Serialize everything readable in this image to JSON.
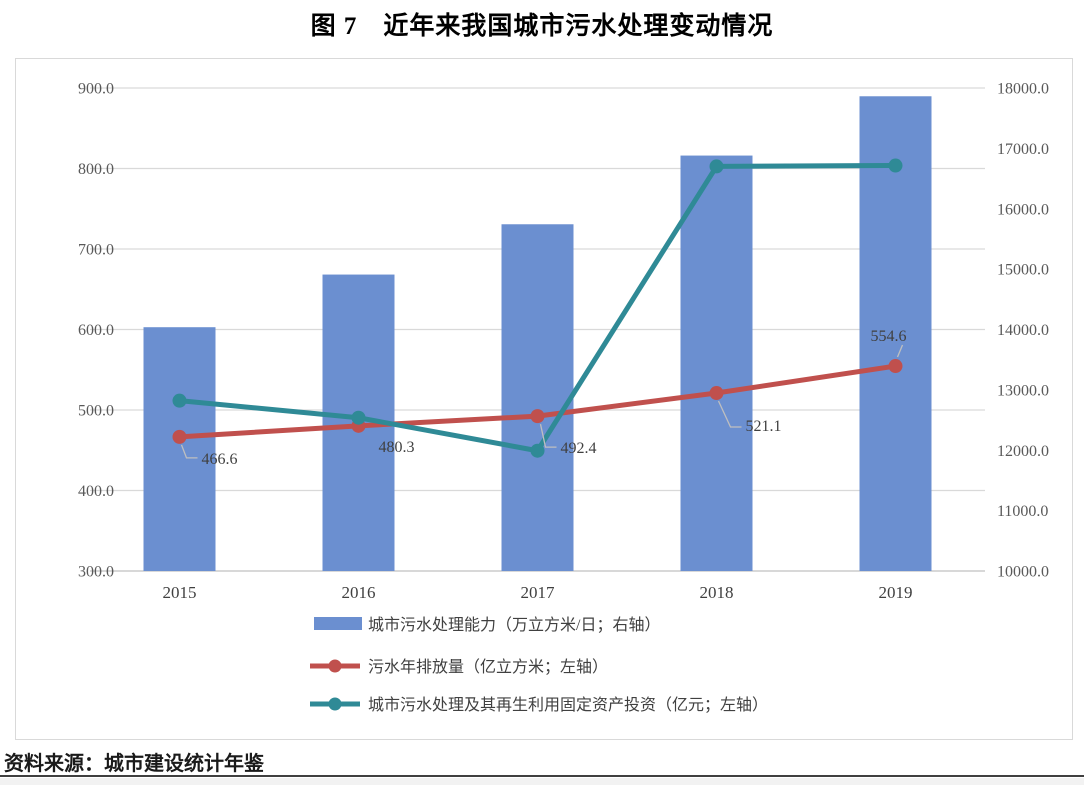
{
  "title": "图 7　近年来我国城市污水处理变动情况",
  "source": "资料来源：城市建设统计年鉴",
  "colors": {
    "bar_blue": "#6B8FD0",
    "line_red": "#C0504D",
    "line_teal": "#2F8A96",
    "grid": "#D9D9D9",
    "axis_line": "#CCCCCC",
    "axis_text": "#595959",
    "label_text": "#404040",
    "leader": "#BFBFBF",
    "frame": "#D9D9D9"
  },
  "chart_data": {
    "type": "bar+line combo",
    "categories": [
      "2015",
      "2016",
      "2017",
      "2018",
      "2019"
    ],
    "series": [
      {
        "name": "城市污水处理能力（万立方米/日；右轴）",
        "type": "bar",
        "axis": "right",
        "color": "#6B8FD0",
        "values": [
          14038,
          14910,
          15743,
          16881,
          17863
        ]
      },
      {
        "name": "污水年排放量（亿立方米；左轴）",
        "type": "line",
        "axis": "left",
        "color": "#C0504D",
        "values": [
          466.6,
          480.3,
          492.4,
          521.1,
          554.6
        ],
        "point_labels": [
          "466.6",
          "480.3",
          "492.4",
          "521.1",
          "554.6"
        ]
      },
      {
        "name": "城市污水处理及其再生利用固定资产投资（亿元；左轴）",
        "type": "line",
        "axis": "left",
        "color": "#2F8A96",
        "values": [
          511.6,
          490.4,
          449.4,
          802.6,
          803.7
        ]
      }
    ],
    "left_axis": {
      "min": 300,
      "max": 900,
      "step": 100,
      "ticks": [
        "900.0",
        "800.0",
        "700.0",
        "600.0",
        "500.0",
        "400.0",
        "300.0"
      ]
    },
    "right_axis": {
      "min": 10000,
      "max": 18000,
      "step": 1000,
      "ticks": [
        "18000.0",
        "17000.0",
        "16000.0",
        "15000.0",
        "14000.0",
        "13000.0",
        "12000.0",
        "11000.0",
        "10000.0"
      ]
    },
    "grid": "horizontal",
    "legend_position": "bottom"
  }
}
